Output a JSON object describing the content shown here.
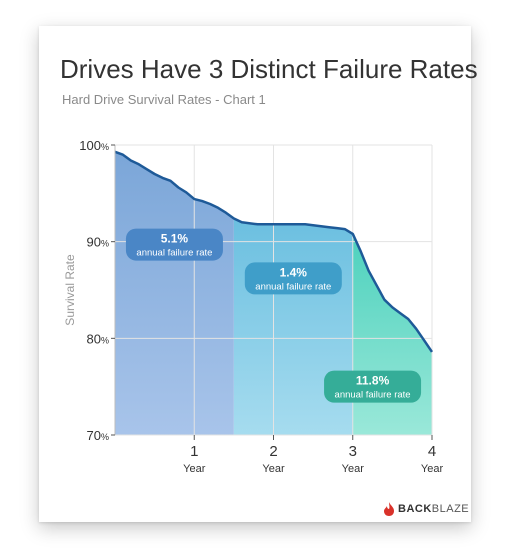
{
  "chart_data": {
    "type": "area",
    "title": "Drives Have 3 Distinct Failure Rates",
    "subtitle": "Hard Drive Survival Rates - Chart 1",
    "ylabel": "Survival Rate",
    "xlabel": "",
    "xlim": [
      0,
      4
    ],
    "ylim": [
      70,
      100
    ],
    "y_ticks": [
      {
        "value": 100,
        "label": "100%"
      },
      {
        "value": 90,
        "label": "90%"
      },
      {
        "value": 80,
        "label": "80%"
      },
      {
        "value": 70,
        "label": "70%"
      }
    ],
    "x_ticks": [
      {
        "value": 1,
        "num": "1",
        "unit": "Year"
      },
      {
        "value": 2,
        "num": "2",
        "unit": "Year"
      },
      {
        "value": 3,
        "num": "3",
        "unit": "Year"
      },
      {
        "value": 4,
        "num": "4",
        "unit": "Year"
      }
    ],
    "grid": true,
    "series": [
      {
        "x": [
          0,
          0.1,
          0.2,
          0.3,
          0.4,
          0.5,
          0.6,
          0.7,
          0.8,
          0.9,
          1.0,
          1.1,
          1.2,
          1.3,
          1.4,
          1.5,
          1.6,
          1.8,
          2.0,
          2.2,
          2.4,
          2.5,
          2.7,
          2.8,
          2.9,
          3.0,
          3.1,
          3.2,
          3.3,
          3.4,
          3.5,
          3.6,
          3.7,
          3.8,
          3.9,
          4.0
        ],
        "values": [
          99.3,
          99.0,
          98.4,
          98.0,
          97.5,
          97.0,
          96.6,
          96.3,
          95.6,
          95.1,
          94.4,
          94.2,
          93.9,
          93.5,
          93.0,
          92.4,
          92.0,
          91.8,
          91.8,
          91.8,
          91.8,
          91.7,
          91.5,
          91.4,
          91.3,
          90.8,
          89.0,
          87.0,
          85.5,
          84.0,
          83.2,
          82.6,
          82.0,
          81.0,
          79.8,
          78.6
        ]
      }
    ],
    "regions": [
      {
        "x_start": 0,
        "x_end": 1.5,
        "color_top": "#7ba6d8",
        "color_bottom": "#a8c4ea"
      },
      {
        "x_start": 1.5,
        "x_end": 3.0,
        "color_top": "#6bbfe0",
        "color_bottom": "#a6dcef"
      },
      {
        "x_start": 3.0,
        "x_end": 4.0,
        "color_top": "#4dd1bd",
        "color_bottom": "#9ae8d9"
      }
    ],
    "annotations": [
      {
        "x": 0.75,
        "y": 89.7,
        "rate": "5.1%",
        "text": "annual failure rate",
        "color": "#4a86c6"
      },
      {
        "x": 2.25,
        "y": 86.2,
        "rate": "1.4%",
        "text": "annual failure rate",
        "color": "#3f9ec9"
      },
      {
        "x": 3.25,
        "y": 75.0,
        "rate": "11.8%",
        "text": "annual failure rate",
        "color": "#35ad98"
      }
    ],
    "line_color": "#1e5a98"
  },
  "brand": {
    "name_bold": "BACK",
    "name_light": "BLAZE",
    "icon": "flame-icon",
    "color": "#d9322a"
  }
}
